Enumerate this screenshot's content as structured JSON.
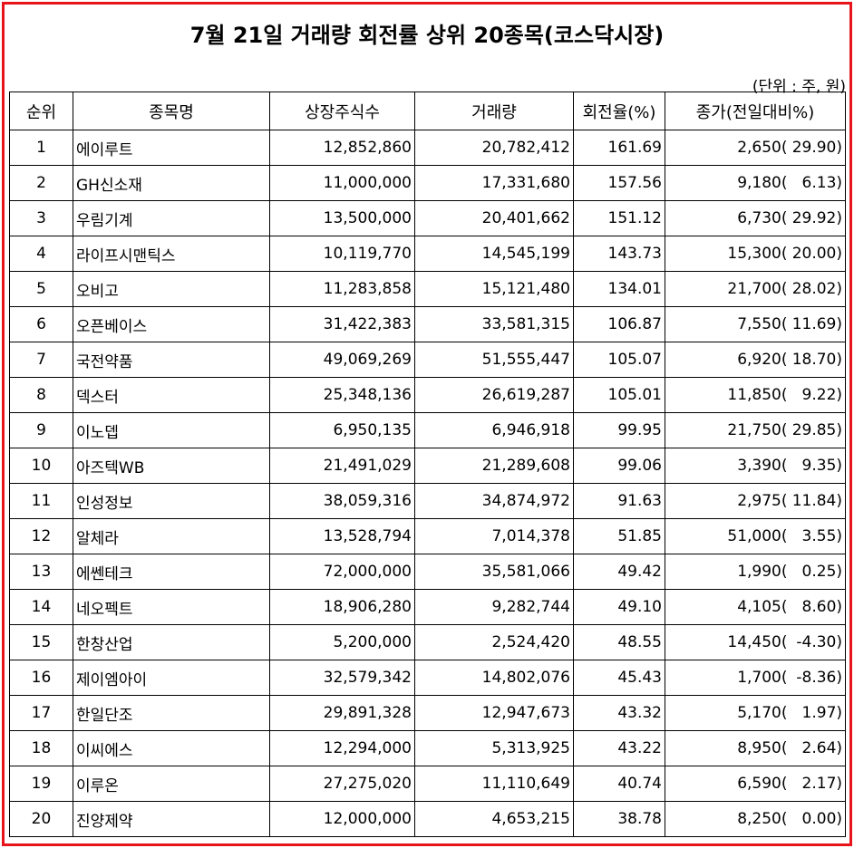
{
  "header": {
    "title": "7월 21일 거래량 회전률 상위 20종목(코스닥시장)",
    "unit": "(단위 : 주, 원)"
  },
  "table": {
    "columns": [
      "순위",
      "종목명",
      "상장주식수",
      "거래량",
      "회전율(%)",
      "종가(전일대비%)"
    ],
    "rows": [
      [
        "1",
        "에이루트",
        "12,852,860",
        "20,782,412",
        "161.69",
        "2,650(",
        "29.90)"
      ],
      [
        "2",
        "GH신소재",
        "11,000,000",
        "17,331,680",
        "157.56",
        "9,180(",
        "6.13)"
      ],
      [
        "3",
        "우림기계",
        "13,500,000",
        "20,401,662",
        "151.12",
        "6,730(",
        "29.92)"
      ],
      [
        "4",
        "라이프시맨틱스",
        "10,119,770",
        "14,545,199",
        "143.73",
        "15,300(",
        "20.00)"
      ],
      [
        "5",
        "오비고",
        "11,283,858",
        "15,121,480",
        "134.01",
        "21,700(",
        "28.02)"
      ],
      [
        "6",
        "오픈베이스",
        "31,422,383",
        "33,581,315",
        "106.87",
        "7,550(",
        "11.69)"
      ],
      [
        "7",
        "국전약품",
        "49,069,269",
        "51,555,447",
        "105.07",
        "6,920(",
        "18.70)"
      ],
      [
        "8",
        "덱스터",
        "25,348,136",
        "26,619,287",
        "105.01",
        "11,850(",
        "9.22)"
      ],
      [
        "9",
        "이노뎁",
        "6,950,135",
        "6,946,918",
        "99.95",
        "21,750(",
        "29.85)"
      ],
      [
        "10",
        "아즈텍WB",
        "21,491,029",
        "21,289,608",
        "99.06",
        "3,390(",
        "9.35)"
      ],
      [
        "11",
        "인성정보",
        "38,059,316",
        "34,874,972",
        "91.63",
        "2,975(",
        "11.84)"
      ],
      [
        "12",
        "알체라",
        "13,528,794",
        "7,014,378",
        "51.85",
        "51,000(",
        "3.55)"
      ],
      [
        "13",
        "에쎈테크",
        "72,000,000",
        "35,581,066",
        "49.42",
        "1,990(",
        "0.25)"
      ],
      [
        "14",
        "네오펙트",
        "18,906,280",
        "9,282,744",
        "49.10",
        "4,105(",
        "8.60)"
      ],
      [
        "15",
        "한창산업",
        "5,200,000",
        "2,524,420",
        "48.55",
        "14,450(",
        "-4.30)"
      ],
      [
        "16",
        "제이엠아이",
        "32,579,342",
        "14,802,076",
        "45.43",
        "1,700(",
        "-8.36)"
      ],
      [
        "17",
        "한일단조",
        "29,891,328",
        "12,947,673",
        "43.32",
        "5,170(",
        "1.97)"
      ],
      [
        "18",
        "이씨에스",
        "12,294,000",
        "5,313,925",
        "43.22",
        "8,950(",
        "2.64)"
      ],
      [
        "19",
        "이루온",
        "27,275,020",
        "11,110,649",
        "40.74",
        "6,590(",
        "2.17)"
      ],
      [
        "20",
        "진양제약",
        "12,000,000",
        "4,653,215",
        "38.78",
        "8,250(",
        "0.00)"
      ]
    ]
  }
}
